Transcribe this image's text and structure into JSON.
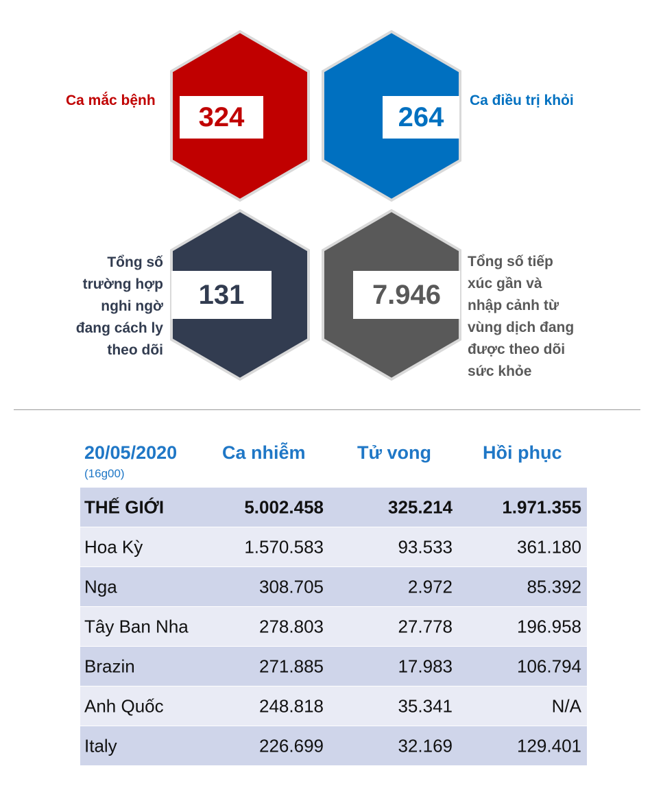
{
  "colors": {
    "cases": "#C00000",
    "recovered": "#0070C0",
    "suspected": "#323C50",
    "contacts": "#595959",
    "accent_blue": "#1F77C6",
    "row_dark": "#CFD5EA",
    "row_light": "#E9EBF5"
  },
  "stats": {
    "cases": {
      "value": "324",
      "label": "Ca mắc bệnh"
    },
    "recovered": {
      "value": "264",
      "label": "Ca điều trị khỏi"
    },
    "suspected": {
      "value": "131",
      "label_lines": [
        "Tổng số",
        "trường hợp",
        "nghi ngờ",
        "đang cách ly",
        "theo dõi"
      ]
    },
    "contacts": {
      "value": "7.946",
      "label_lines": [
        "Tổng số tiếp",
        "xúc gần và",
        "nhập cảnh từ",
        "vùng dịch đang",
        "được theo dõi",
        "sức khỏe"
      ]
    }
  },
  "table": {
    "date": "20/05/2020",
    "time": "(16g00)",
    "headers": [
      "Ca nhiễm",
      "Tử vong",
      "Hồi phục"
    ],
    "rows": [
      {
        "name": "THẾ GIỚI",
        "infected": "5.002.458",
        "deaths": "325.214",
        "recovered": "1.971.355"
      },
      {
        "name": "Hoa Kỳ",
        "infected": "1.570.583",
        "deaths": "93.533",
        "recovered": "361.180"
      },
      {
        "name": "Nga",
        "infected": "308.705",
        "deaths": "2.972",
        "recovered": "85.392"
      },
      {
        "name": "Tây Ban Nha",
        "infected": "278.803",
        "deaths": "27.778",
        "recovered": "196.958"
      },
      {
        "name": "Brazin",
        "infected": "271.885",
        "deaths": "17.983",
        "recovered": "106.794"
      },
      {
        "name": "Anh Quốc",
        "infected": "248.818",
        "deaths": "35.341",
        "recovered": "N/A"
      },
      {
        "name": "Italy",
        "infected": "226.699",
        "deaths": "32.169",
        "recovered": "129.401"
      }
    ]
  }
}
